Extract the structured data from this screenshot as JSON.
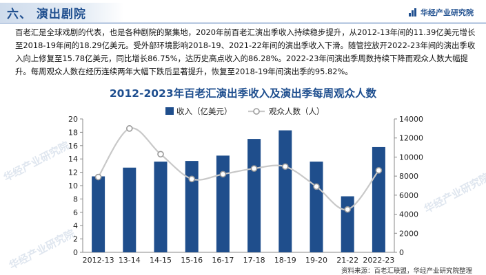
{
  "header": {
    "section_title": "六、 演出剧院",
    "brand_name": "华经产业研究院",
    "logo_icon": "bar-logo-icon"
  },
  "paragraph": "百老汇是全球戏剧的代表，也是各种剧院的聚集地，2020年前百老汇演出季收入持续稳步提升，从2012-13年间的11.39亿美元增长至2018-19年间的18.29亿美元。受外部环境影响2018-19、2021-22年间的演出季收入下滑。随管控放开2022-23年间的演出季收入向上修复至15.78亿美元，同比增长86.75%，达历史高点收入的86.28%。2022-23年间演出季周数持续下降而观众人数大幅提升。每周观众人数在经历连续两年大幅下跌后显著提升，恢复至2018-19年间演出季的95.82%。",
  "watermark": "华经产业研究院",
  "source": "资料来源：百老汇联盟，华经产业研究院整理",
  "colors": {
    "bar": "#1f4e8c",
    "line": "#c8c8c8",
    "title": "#1f4f8f"
  },
  "chart_data": {
    "type": "bar+line",
    "title": "2012-2023年百老汇演出季收入及演出季每周观众人数",
    "categories": [
      "2012-13",
      "13-14",
      "14-15",
      "15-16",
      "16-17",
      "17-18",
      "18-19",
      "19-20",
      "21-22",
      "2022-23"
    ],
    "series": [
      {
        "name": "收入（亿美元）",
        "type": "bar",
        "axis": "left",
        "values": [
          11.39,
          12.7,
          13.6,
          13.7,
          14.5,
          17.0,
          18.29,
          13.6,
          8.4,
          15.78
        ]
      },
      {
        "name": "观众人数（人）",
        "type": "line",
        "axis": "right",
        "values": [
          7900,
          13000,
          10300,
          7700,
          8200,
          8800,
          9000,
          6900,
          4500,
          8600
        ]
      }
    ],
    "y_left": {
      "min": 0,
      "max": 20,
      "ticks": [
        0,
        2,
        4,
        6,
        8,
        10,
        12,
        14,
        16,
        18,
        20
      ]
    },
    "y_right": {
      "min": 0,
      "max": 14000,
      "ticks": [
        0,
        2000,
        4000,
        6000,
        8000,
        10000,
        12000,
        14000
      ]
    },
    "legend": "top-center",
    "grid": false
  }
}
